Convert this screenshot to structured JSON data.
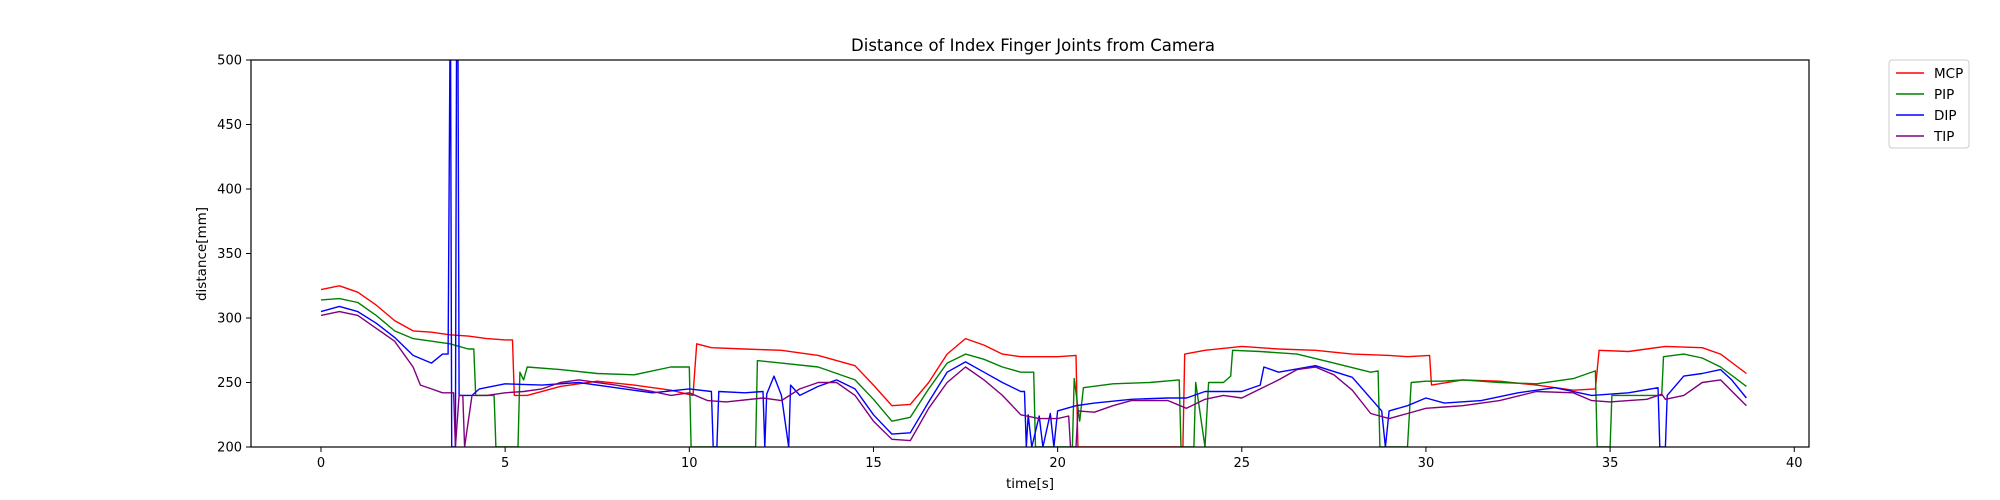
{
  "chart_data": {
    "type": "line",
    "title": "Distance of Index Finger Joints from Camera",
    "xlabel": "time[s]",
    "ylabel": "distance[mm]",
    "xlim": [
      -1.9,
      40.4
    ],
    "ylim": [
      200,
      500
    ],
    "xticks": [
      0,
      5,
      10,
      15,
      20,
      25,
      30,
      35,
      40
    ],
    "yticks": [
      200,
      250,
      300,
      350,
      400,
      450,
      500
    ],
    "grid": false,
    "legend_position": "outside-top-right",
    "series": [
      {
        "name": "MCP",
        "color": "#ff0000",
        "points": [
          [
            0,
            322
          ],
          [
            0.5,
            325
          ],
          [
            1.0,
            320
          ],
          [
            1.5,
            310
          ],
          [
            2.0,
            298
          ],
          [
            2.5,
            290
          ],
          [
            3.0,
            289
          ],
          [
            3.5,
            287
          ],
          [
            4.0,
            286
          ],
          [
            4.5,
            284
          ],
          [
            5.0,
            283
          ],
          [
            5.2,
            283
          ],
          [
            5.25,
            240
          ],
          [
            5.6,
            240
          ],
          [
            6.5,
            247
          ],
          [
            7.5,
            251
          ],
          [
            8.5,
            248
          ],
          [
            9.5,
            244
          ],
          [
            10.1,
            240
          ],
          [
            10.2,
            280
          ],
          [
            10.6,
            277
          ],
          [
            11.5,
            276
          ],
          [
            12.5,
            275
          ],
          [
            13.5,
            271
          ],
          [
            14.5,
            263
          ],
          [
            15.0,
            248
          ],
          [
            15.5,
            232
          ],
          [
            16.0,
            233
          ],
          [
            16.5,
            250
          ],
          [
            17.0,
            272
          ],
          [
            17.5,
            284
          ],
          [
            18.0,
            279
          ],
          [
            18.5,
            272
          ],
          [
            19.0,
            270
          ],
          [
            19.5,
            270
          ],
          [
            20.0,
            270
          ],
          [
            20.5,
            271
          ],
          [
            20.55,
            200
          ],
          [
            23.4,
            200
          ],
          [
            23.45,
            272
          ],
          [
            24.0,
            275
          ],
          [
            25.0,
            278
          ],
          [
            26.0,
            276
          ],
          [
            27.0,
            275
          ],
          [
            28.0,
            272
          ],
          [
            29.0,
            271
          ],
          [
            29.5,
            270
          ],
          [
            30.1,
            271
          ],
          [
            30.15,
            248
          ],
          [
            31.0,
            252
          ],
          [
            32.0,
            251
          ],
          [
            33.0,
            248
          ],
          [
            34.0,
            244
          ],
          [
            34.6,
            245
          ],
          [
            34.7,
            275
          ],
          [
            35.5,
            274
          ],
          [
            36.5,
            278
          ],
          [
            37.5,
            277
          ],
          [
            38.0,
            272
          ],
          [
            38.7,
            257
          ]
        ]
      },
      {
        "name": "PIP",
        "color": "#008000",
        "points": [
          [
            0,
            314
          ],
          [
            0.5,
            315
          ],
          [
            1.0,
            312
          ],
          [
            1.5,
            302
          ],
          [
            2.0,
            290
          ],
          [
            2.5,
            284
          ],
          [
            3.0,
            282
          ],
          [
            3.5,
            280
          ],
          [
            4.0,
            276
          ],
          [
            4.15,
            276
          ],
          [
            4.2,
            240
          ],
          [
            4.7,
            240
          ],
          [
            4.75,
            200
          ],
          [
            5.35,
            200
          ],
          [
            5.4,
            258
          ],
          [
            5.5,
            252
          ],
          [
            5.6,
            262
          ],
          [
            6.5,
            260
          ],
          [
            7.5,
            257
          ],
          [
            8.5,
            256
          ],
          [
            9.5,
            262
          ],
          [
            10.0,
            262
          ],
          [
            10.05,
            200
          ],
          [
            11.8,
            200
          ],
          [
            11.85,
            267
          ],
          [
            12.5,
            265
          ],
          [
            13.5,
            262
          ],
          [
            14.5,
            252
          ],
          [
            15.0,
            237
          ],
          [
            15.5,
            220
          ],
          [
            16.0,
            223
          ],
          [
            16.5,
            245
          ],
          [
            17.0,
            265
          ],
          [
            17.5,
            272
          ],
          [
            18.0,
            268
          ],
          [
            18.5,
            262
          ],
          [
            19.0,
            258
          ],
          [
            19.35,
            258
          ],
          [
            19.4,
            200
          ],
          [
            20.4,
            200
          ],
          [
            20.45,
            253
          ],
          [
            20.6,
            220
          ],
          [
            20.7,
            246
          ],
          [
            21.5,
            249
          ],
          [
            22.5,
            250
          ],
          [
            23.3,
            252
          ],
          [
            23.35,
            200
          ],
          [
            23.7,
            200
          ],
          [
            23.75,
            250
          ],
          [
            24.0,
            200
          ],
          [
            24.1,
            250
          ],
          [
            24.5,
            250
          ],
          [
            24.7,
            255
          ],
          [
            24.75,
            275
          ],
          [
            25.5,
            274
          ],
          [
            26.5,
            272
          ],
          [
            27.5,
            265
          ],
          [
            28.5,
            258
          ],
          [
            28.7,
            259
          ],
          [
            28.75,
            200
          ],
          [
            29.5,
            200
          ],
          [
            29.6,
            250
          ],
          [
            30.0,
            251
          ],
          [
            30.4,
            251
          ],
          [
            31.0,
            252
          ],
          [
            32.0,
            250
          ],
          [
            33.0,
            249
          ],
          [
            34.0,
            253
          ],
          [
            34.6,
            259
          ],
          [
            34.65,
            200
          ],
          [
            35.0,
            200
          ],
          [
            35.05,
            240
          ],
          [
            36.0,
            240
          ],
          [
            36.4,
            240
          ],
          [
            36.45,
            270
          ],
          [
            37.0,
            272
          ],
          [
            37.5,
            269
          ],
          [
            38.0,
            262
          ],
          [
            38.7,
            247
          ]
        ]
      },
      {
        "name": "DIP",
        "color": "#0000ff",
        "points": [
          [
            0,
            305
          ],
          [
            0.5,
            309
          ],
          [
            1.0,
            305
          ],
          [
            1.5,
            296
          ],
          [
            2.0,
            285
          ],
          [
            2.5,
            271
          ],
          [
            3.0,
            265
          ],
          [
            3.3,
            272
          ],
          [
            3.45,
            272
          ],
          [
            3.5,
            500
          ],
          [
            3.52,
            500
          ],
          [
            3.55,
            200
          ],
          [
            3.65,
            200
          ],
          [
            3.68,
            500
          ],
          [
            3.72,
            500
          ],
          [
            3.75,
            240
          ],
          [
            4.1,
            240
          ],
          [
            4.3,
            245
          ],
          [
            5.0,
            249
          ],
          [
            6.0,
            248
          ],
          [
            7.0,
            250
          ],
          [
            8.0,
            246
          ],
          [
            9.0,
            242
          ],
          [
            10.0,
            245
          ],
          [
            10.6,
            243
          ],
          [
            10.65,
            200
          ],
          [
            10.75,
            200
          ],
          [
            10.8,
            243
          ],
          [
            11.5,
            242
          ],
          [
            12.0,
            243
          ],
          [
            12.05,
            200
          ],
          [
            12.1,
            241
          ],
          [
            12.3,
            255
          ],
          [
            12.5,
            240
          ],
          [
            12.7,
            200
          ],
          [
            12.75,
            248
          ],
          [
            13.0,
            240
          ],
          [
            13.5,
            247
          ],
          [
            14.0,
            252
          ],
          [
            14.5,
            245
          ],
          [
            15.0,
            225
          ],
          [
            15.5,
            210
          ],
          [
            16.0,
            211
          ],
          [
            16.5,
            235
          ],
          [
            17.0,
            258
          ],
          [
            17.5,
            266
          ],
          [
            18.0,
            258
          ],
          [
            18.5,
            250
          ],
          [
            19.0,
            243
          ],
          [
            19.1,
            243
          ],
          [
            19.15,
            200
          ],
          [
            19.2,
            225
          ],
          [
            19.3,
            200
          ],
          [
            19.5,
            224
          ],
          [
            19.6,
            200
          ],
          [
            19.8,
            226
          ],
          [
            19.9,
            200
          ],
          [
            20.0,
            228
          ],
          [
            20.5,
            232
          ],
          [
            21.0,
            234
          ],
          [
            22.0,
            237
          ],
          [
            23.0,
            238
          ],
          [
            23.5,
            238
          ],
          [
            24.0,
            243
          ],
          [
            25.0,
            243
          ],
          [
            25.5,
            248
          ],
          [
            25.6,
            262
          ],
          [
            26.0,
            258
          ],
          [
            27.0,
            263
          ],
          [
            28.0,
            254
          ],
          [
            28.8,
            228
          ],
          [
            28.9,
            200
          ],
          [
            29.0,
            228
          ],
          [
            29.5,
            232
          ],
          [
            30.0,
            238
          ],
          [
            30.5,
            234
          ],
          [
            31.5,
            236
          ],
          [
            32.5,
            242
          ],
          [
            33.5,
            246
          ],
          [
            34.5,
            240
          ],
          [
            35.5,
            242
          ],
          [
            36.3,
            246
          ],
          [
            36.35,
            200
          ],
          [
            36.5,
            200
          ],
          [
            36.55,
            240
          ],
          [
            37.0,
            255
          ],
          [
            37.5,
            257
          ],
          [
            38.0,
            260
          ],
          [
            38.3,
            252
          ],
          [
            38.7,
            238
          ]
        ]
      },
      {
        "name": "TIP",
        "color": "#800080",
        "points": [
          [
            0,
            302
          ],
          [
            0.5,
            305
          ],
          [
            1.0,
            302
          ],
          [
            1.5,
            292
          ],
          [
            2.0,
            282
          ],
          [
            2.5,
            262
          ],
          [
            2.7,
            248
          ],
          [
            3.0,
            245
          ],
          [
            3.3,
            242
          ],
          [
            3.6,
            242
          ],
          [
            3.65,
            200
          ],
          [
            3.75,
            240
          ],
          [
            3.85,
            240
          ],
          [
            3.9,
            200
          ],
          [
            4.1,
            240
          ],
          [
            4.5,
            240
          ],
          [
            5.0,
            242
          ],
          [
            5.5,
            243
          ],
          [
            6.0,
            245
          ],
          [
            6.5,
            250
          ],
          [
            7.0,
            252
          ],
          [
            7.5,
            250
          ],
          [
            8.0,
            248
          ],
          [
            9.0,
            243
          ],
          [
            9.5,
            240
          ],
          [
            10.0,
            242
          ],
          [
            10.5,
            236
          ],
          [
            11.0,
            235
          ],
          [
            12.0,
            238
          ],
          [
            12.5,
            236
          ],
          [
            13.0,
            245
          ],
          [
            13.5,
            250
          ],
          [
            14.0,
            250
          ],
          [
            14.5,
            240
          ],
          [
            15.0,
            220
          ],
          [
            15.5,
            206
          ],
          [
            16.0,
            205
          ],
          [
            16.5,
            230
          ],
          [
            17.0,
            250
          ],
          [
            17.5,
            262
          ],
          [
            18.0,
            252
          ],
          [
            18.5,
            240
          ],
          [
            19.0,
            225
          ],
          [
            19.5,
            222
          ],
          [
            20.0,
            222
          ],
          [
            20.3,
            224
          ],
          [
            20.35,
            200
          ],
          [
            20.5,
            200
          ],
          [
            20.55,
            228
          ],
          [
            21.0,
            227
          ],
          [
            21.5,
            232
          ],
          [
            22.0,
            236
          ],
          [
            23.0,
            236
          ],
          [
            23.5,
            230
          ],
          [
            24.0,
            237
          ],
          [
            24.5,
            240
          ],
          [
            25.0,
            238
          ],
          [
            25.5,
            245
          ],
          [
            26.0,
            252
          ],
          [
            26.5,
            260
          ],
          [
            27.0,
            262
          ],
          [
            27.5,
            256
          ],
          [
            28.0,
            244
          ],
          [
            28.5,
            226
          ],
          [
            29.0,
            222
          ],
          [
            29.5,
            226
          ],
          [
            30.0,
            230
          ],
          [
            30.5,
            231
          ],
          [
            31.0,
            232
          ],
          [
            32.0,
            236
          ],
          [
            33.0,
            243
          ],
          [
            34.0,
            242
          ],
          [
            34.5,
            236
          ],
          [
            35.0,
            235
          ],
          [
            35.5,
            236
          ],
          [
            36.0,
            237
          ],
          [
            36.4,
            241
          ],
          [
            36.5,
            237
          ],
          [
            37.0,
            240
          ],
          [
            37.5,
            250
          ],
          [
            38.0,
            252
          ],
          [
            38.7,
            232
          ]
        ]
      }
    ]
  }
}
